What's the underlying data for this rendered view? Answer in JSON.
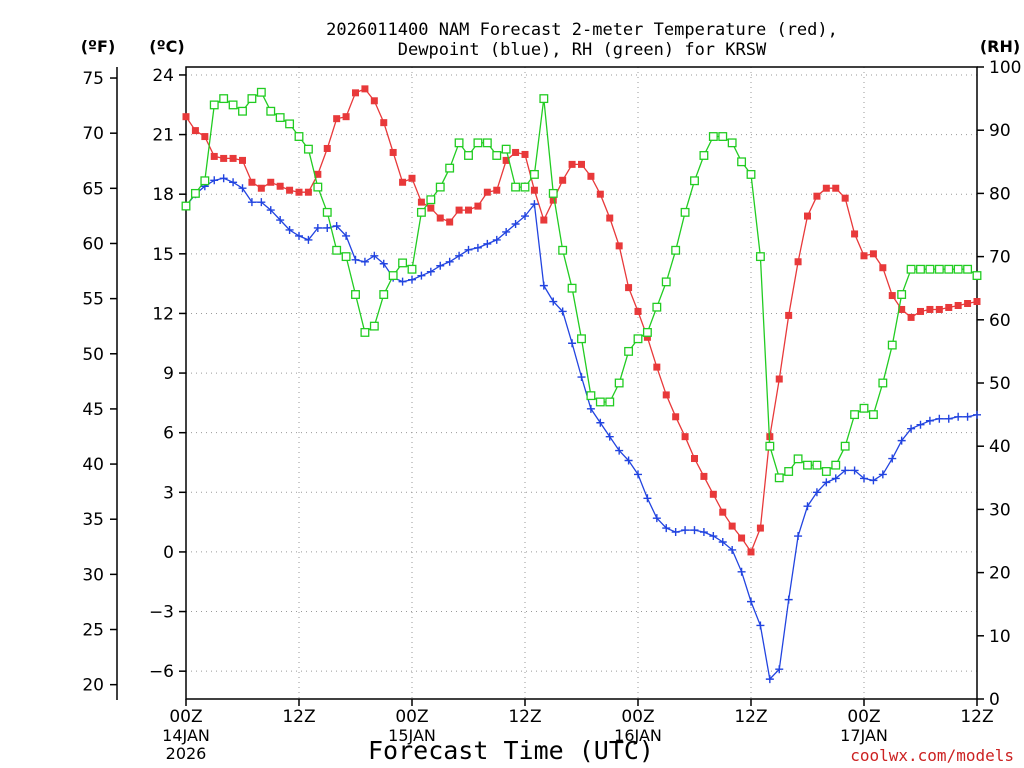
{
  "chart": {
    "title_line1": "2026011400 NAM Forecast 2-meter Temperature (red),",
    "title_line2": "Dewpoint (blue), RH (green) for KRSW",
    "xlabel": "Forecast Time (UTC)",
    "credit": "coolwx.com/models",
    "unit_f": "(ºF)",
    "unit_c": "(ºC)",
    "unit_rh": "(RH)"
  },
  "chart_data": {
    "type": "line",
    "title": "2026011400 NAM Forecast 2-meter Temperature (red), Dewpoint (blue), RH (green) for KRSW",
    "xlabel": "Forecast Time (UTC)",
    "ylabel_left": "(ºC)",
    "ylabel_far_left": "(ºF)",
    "ylabel_right": "(RH)",
    "x_unit": "forecast hour from 2026-01-14 00Z",
    "xlim": [
      0,
      84
    ],
    "ylim_c": [
      -7.4,
      24.4
    ],
    "ylim_rh": [
      0,
      100
    ],
    "ylim_f": [
      18.7,
      76
    ],
    "grid": true,
    "x_ticks": [
      {
        "hour": 0,
        "label": "00Z",
        "date": "14JAN",
        "year": "2026"
      },
      {
        "hour": 12,
        "label": "12Z"
      },
      {
        "hour": 24,
        "label": "00Z",
        "date": "15JAN"
      },
      {
        "hour": 36,
        "label": "12Z"
      },
      {
        "hour": 48,
        "label": "00Z",
        "date": "16JAN"
      },
      {
        "hour": 60,
        "label": "12Z"
      },
      {
        "hour": 72,
        "label": "00Z",
        "date": "17JAN"
      },
      {
        "hour": 84,
        "label": "12Z"
      }
    ],
    "y_ticks_c": [
      "24",
      "21",
      "18",
      "15",
      "12",
      "9",
      "6",
      "3",
      "0",
      "−3",
      "−6"
    ],
    "y_ticks_f": [
      "75",
      "70",
      "65",
      "60",
      "55",
      "50",
      "45",
      "40",
      "35",
      "30",
      "25",
      "20"
    ],
    "y_ticks_rh": [
      "100",
      "90",
      "80",
      "70",
      "60",
      "50",
      "40",
      "30",
      "20",
      "10",
      "0"
    ],
    "series": [
      {
        "name": "Temperature",
        "unit": "C",
        "color": "#e8393a",
        "marker": "filled-square",
        "x": [
          0,
          1,
          2,
          3,
          4,
          5,
          6,
          7,
          8,
          9,
          10,
          11,
          12,
          13,
          14,
          15,
          16,
          17,
          18,
          19,
          20,
          21,
          22,
          23,
          24,
          25,
          26,
          27,
          28,
          29,
          30,
          31,
          32,
          33,
          34,
          35,
          36,
          37,
          38,
          39,
          40,
          41,
          42,
          43,
          44,
          45,
          46,
          47,
          48,
          49,
          50,
          51,
          52,
          53,
          54,
          55,
          56,
          57,
          58,
          59,
          60,
          61,
          62,
          63,
          64,
          65,
          66,
          67,
          68,
          69,
          70,
          71,
          72,
          73,
          74,
          75,
          76,
          77,
          78,
          79,
          80,
          81,
          82,
          83,
          84
        ],
        "values": [
          21.9,
          21.2,
          20.9,
          19.9,
          19.8,
          19.8,
          19.7,
          18.6,
          18.3,
          18.6,
          18.4,
          18.2,
          18.1,
          18.1,
          19.0,
          20.3,
          21.8,
          21.9,
          23.1,
          23.3,
          22.7,
          21.6,
          20.1,
          18.6,
          18.8,
          17.6,
          17.3,
          16.8,
          16.6,
          17.2,
          17.2,
          17.4,
          18.1,
          18.2,
          19.7,
          20.1,
          20.0,
          18.2,
          16.7,
          17.7,
          18.7,
          19.5,
          19.5,
          18.9,
          18.0,
          16.8,
          15.4,
          13.3,
          12.1,
          10.8,
          9.3,
          7.9,
          6.8,
          5.8,
          4.7,
          3.8,
          2.9,
          2.0,
          1.3,
          0.7,
          0.0,
          1.2,
          5.8,
          8.7,
          11.9,
          14.6,
          16.9,
          17.9,
          18.3,
          18.3,
          17.8,
          16.0,
          14.9,
          15.0,
          14.3,
          12.9,
          12.2,
          11.8,
          12.1,
          12.2,
          12.2,
          12.3,
          12.4,
          12.5,
          12.6
        ]
      },
      {
        "name": "Dewpoint",
        "unit": "C",
        "color": "#2244e0",
        "marker": "plus",
        "x": [
          0,
          1,
          2,
          3,
          4,
          5,
          6,
          7,
          8,
          9,
          10,
          11,
          12,
          13,
          14,
          15,
          16,
          17,
          18,
          19,
          20,
          21,
          22,
          23,
          24,
          25,
          26,
          27,
          28,
          29,
          30,
          31,
          32,
          33,
          34,
          35,
          36,
          37,
          38,
          39,
          40,
          41,
          42,
          43,
          44,
          45,
          46,
          47,
          48,
          49,
          50,
          51,
          52,
          53,
          54,
          55,
          56,
          57,
          58,
          59,
          60,
          61,
          62,
          63,
          64,
          65,
          66,
          67,
          68,
          69,
          70,
          71,
          72,
          73,
          74,
          75,
          76,
          77,
          78,
          79,
          80,
          81,
          82,
          83,
          84
        ],
        "values": [
          17.4,
          18.0,
          18.4,
          18.7,
          18.8,
          18.6,
          18.3,
          17.6,
          17.6,
          17.2,
          16.7,
          16.2,
          15.9,
          15.7,
          16.3,
          16.3,
          16.4,
          15.9,
          14.7,
          14.6,
          14.9,
          14.5,
          13.8,
          13.6,
          13.7,
          13.9,
          14.1,
          14.4,
          14.6,
          14.9,
          15.2,
          15.3,
          15.5,
          15.7,
          16.1,
          16.5,
          16.9,
          17.5,
          13.4,
          12.6,
          12.1,
          10.5,
          8.8,
          7.2,
          6.5,
          5.8,
          5.1,
          4.6,
          3.9,
          2.7,
          1.7,
          1.2,
          1.0,
          1.1,
          1.1,
          1.0,
          0.8,
          0.5,
          0.1,
          -1.0,
          -2.5,
          -3.7,
          -6.4,
          -5.9,
          -2.4,
          0.8,
          2.3,
          3.0,
          3.5,
          3.7,
          4.1,
          4.1,
          3.7,
          3.6,
          3.9,
          4.7,
          5.6,
          6.2,
          6.4,
          6.6,
          6.7,
          6.7,
          6.8,
          6.8,
          6.9
        ]
      },
      {
        "name": "RH",
        "unit": "%",
        "color": "#22cc22",
        "marker": "open-square",
        "x": [
          0,
          1,
          2,
          3,
          4,
          5,
          6,
          7,
          8,
          9,
          10,
          11,
          12,
          13,
          14,
          15,
          16,
          17,
          18,
          19,
          20,
          21,
          22,
          23,
          24,
          25,
          26,
          27,
          28,
          29,
          30,
          31,
          32,
          33,
          34,
          35,
          36,
          37,
          38,
          39,
          40,
          41,
          42,
          43,
          44,
          45,
          46,
          47,
          48,
          49,
          50,
          51,
          52,
          53,
          54,
          55,
          56,
          57,
          58,
          59,
          60,
          61,
          62,
          63,
          64,
          65,
          66,
          67,
          68,
          69,
          70,
          71,
          72,
          73,
          74,
          75,
          76,
          77,
          78,
          79,
          80,
          81,
          82,
          83,
          84
        ],
        "values": [
          78,
          80,
          82,
          94,
          95,
          94,
          93,
          95,
          96,
          93,
          92,
          91,
          89,
          87,
          81,
          77,
          71,
          70,
          64,
          58,
          59,
          64,
          67,
          69,
          68,
          77,
          79,
          81,
          84,
          88,
          86,
          88,
          88,
          86,
          87,
          81,
          81,
          83,
          95,
          80,
          71,
          65,
          57,
          48,
          47,
          47,
          50,
          55,
          57,
          58,
          62,
          66,
          71,
          77,
          82,
          86,
          89,
          89,
          88,
          85,
          83,
          70,
          40,
          35,
          36,
          38,
          37,
          37,
          36,
          37,
          40,
          45,
          46,
          45,
          50,
          56,
          64,
          68,
          68,
          68,
          68,
          68,
          68,
          68,
          67
        ]
      }
    ]
  }
}
